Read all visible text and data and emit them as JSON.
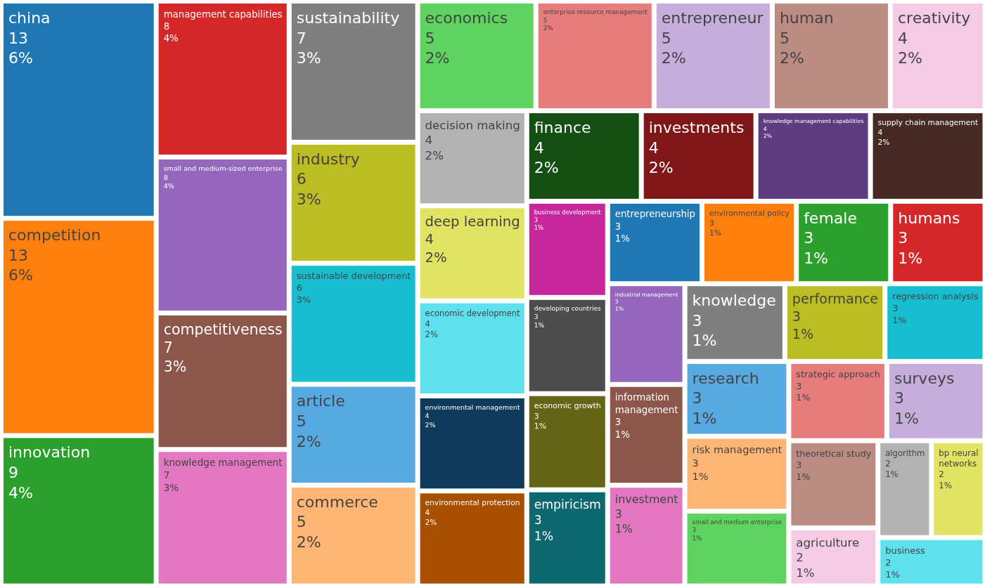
{
  "chart_data": {
    "type": "other",
    "categories": [
      "china",
      "competition",
      "innovation",
      "management capabilities",
      "small and medium-sized enterprise",
      "competitiveness",
      "knowledge management",
      "sustainability",
      "industry",
      "sustainable development",
      "article",
      "commerce",
      "economics",
      "enterprise resource management",
      "entrepreneur",
      "human",
      "creativity",
      "decision making",
      "deep learning",
      "economic development",
      "environmental management",
      "environmental protection",
      "finance",
      "investments",
      "knowledge management capabilities",
      "supply chain management",
      "business development",
      "developing countries",
      "economic growth",
      "empiricism",
      "entrepreneurship",
      "environmental policy",
      "female",
      "humans",
      "industrial management",
      "information management",
      "investment",
      "knowledge",
      "performance",
      "regression analysis",
      "research",
      "risk management",
      "small and medium enterprise",
      "strategic approach",
      "surveys",
      "theoretical study",
      "agriculture",
      "algorithm",
      "bp neural networks",
      "business"
    ],
    "values": [
      13,
      13,
      9,
      8,
      8,
      7,
      7,
      7,
      6,
      6,
      5,
      5,
      5,
      5,
      5,
      5,
      4,
      4,
      4,
      4,
      4,
      4,
      4,
      4,
      4,
      4,
      3,
      3,
      3,
      3,
      3,
      3,
      3,
      3,
      3,
      3,
      3,
      3,
      3,
      3,
      3,
      3,
      3,
      3,
      3,
      3,
      2,
      2,
      2,
      2
    ],
    "annotations": [
      "6%",
      "6%",
      "4%",
      "4%",
      "4%",
      "3%",
      "3%",
      "3%",
      "3%",
      "3%",
      "2%",
      "2%",
      "2%",
      "2%",
      "2%",
      "2%",
      "2%",
      "2%",
      "2%",
      "2%",
      "2%",
      "2%",
      "2%",
      "2%",
      "2%",
      "2%",
      "1%",
      "1%",
      "1%",
      "1%",
      "1%",
      "1%",
      "1%",
      "1%",
      "1%",
      "1%",
      "1%",
      "1%",
      "1%",
      "1%",
      "1%",
      "1%",
      "1%",
      "1%",
      "1%",
      "1%",
      "1%",
      "1%",
      "1%",
      "1%"
    ],
    "colors": [
      "#1f77b4",
      "#ff7f0e",
      "#2ca02c",
      "#d62728",
      "#9467bd",
      "#8c564b",
      "#e377c2",
      "#7f7f7f",
      "#bcbd22",
      "#17becf",
      "#57a9e2",
      "#ffb574",
      "#5fd35f",
      "#e77c7c",
      "#c6aedc",
      "#bc8b81",
      "#f4cae4",
      "#b2b2b2",
      "#e2e362",
      "#5fe0ed",
      "#0f3b5c",
      "#a84f00",
      "#154f14",
      "#7f1617",
      "#5f3b82",
      "#482a24",
      "#c7279a",
      "#4c4c4c",
      "#646516",
      "#0d6870",
      "#1f77b4",
      "#ff7f0e",
      "#2ca02c",
      "#d62728",
      "#9467bd",
      "#8c564b",
      "#e377c2",
      "#7f7f7f",
      "#bcbd22",
      "#17becf",
      "#57a9e2",
      "#ffb574",
      "#5fd35f",
      "#e77c7c",
      "#c6aedc",
      "#bc8b81",
      "#f4cae4",
      "#b2b2b2",
      "#e2e362",
      "#5fe0ed"
    ],
    "data_labels": true
  }
}
